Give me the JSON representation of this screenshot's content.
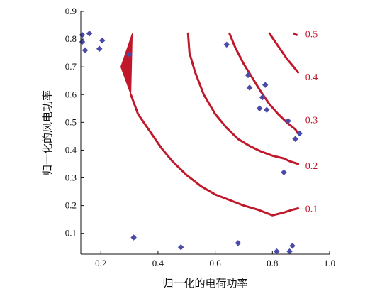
{
  "chart_data": {
    "type": "scatter",
    "xlabel": "归一化的电荷功率",
    "ylabel": "归一化的风电功率",
    "xlim": [
      0.13,
      1.0
    ],
    "ylim": [
      0.025,
      0.9
    ],
    "xticks": [
      {
        "value": 0.2,
        "label": "0.2"
      },
      {
        "value": 0.4,
        "label": "0.4"
      },
      {
        "value": 0.6,
        "label": "0.6"
      },
      {
        "value": 0.8,
        "label": "0.8"
      },
      {
        "value": 1.0,
        "label": "1.0"
      }
    ],
    "yticks": [
      {
        "value": 0.1,
        "label": "0.1"
      },
      {
        "value": 0.2,
        "label": "0.2"
      },
      {
        "value": 0.3,
        "label": "0.3"
      },
      {
        "value": 0.4,
        "label": "0.4"
      },
      {
        "value": 0.5,
        "label": "0.5"
      },
      {
        "value": 0.6,
        "label": "0.6"
      },
      {
        "value": 0.7,
        "label": "0.7"
      },
      {
        "value": 0.8,
        "label": "0.8"
      },
      {
        "value": 0.9,
        "label": "0.9"
      }
    ],
    "grid": false,
    "colors": {
      "contour": "#c0182a",
      "points": "#4a4aa8",
      "axis": "#111111"
    },
    "points": [
      {
        "x": 0.135,
        "y": 0.815
      },
      {
        "x": 0.16,
        "y": 0.82
      },
      {
        "x": 0.135,
        "y": 0.79
      },
      {
        "x": 0.145,
        "y": 0.76
      },
      {
        "x": 0.195,
        "y": 0.765
      },
      {
        "x": 0.205,
        "y": 0.795
      },
      {
        "x": 0.3,
        "y": 0.745
      },
      {
        "x": 0.315,
        "y": 0.085
      },
      {
        "x": 0.48,
        "y": 0.05
      },
      {
        "x": 0.64,
        "y": 0.78
      },
      {
        "x": 0.68,
        "y": 0.065
      },
      {
        "x": 0.715,
        "y": 0.67
      },
      {
        "x": 0.72,
        "y": 0.625
      },
      {
        "x": 0.755,
        "y": 0.55
      },
      {
        "x": 0.765,
        "y": 0.59
      },
      {
        "x": 0.775,
        "y": 0.635
      },
      {
        "x": 0.78,
        "y": 0.545
      },
      {
        "x": 0.815,
        "y": 0.035
      },
      {
        "x": 0.84,
        "y": 0.32
      },
      {
        "x": 0.855,
        "y": 0.505
      },
      {
        "x": 0.86,
        "y": 0.035
      },
      {
        "x": 0.87,
        "y": 0.055
      },
      {
        "x": 0.88,
        "y": 0.44
      },
      {
        "x": 0.895,
        "y": 0.46
      }
    ],
    "contours": [
      {
        "label": "0.1",
        "points": [
          [
            0.305,
            0.6
          ],
          [
            0.33,
            0.53
          ],
          [
            0.37,
            0.47
          ],
          [
            0.41,
            0.41
          ],
          [
            0.45,
            0.36
          ],
          [
            0.5,
            0.31
          ],
          [
            0.55,
            0.27
          ],
          [
            0.6,
            0.24
          ],
          [
            0.65,
            0.22
          ],
          [
            0.7,
            0.2
          ],
          [
            0.75,
            0.185
          ],
          [
            0.8,
            0.165
          ],
          [
            0.84,
            0.175
          ],
          [
            0.87,
            0.185
          ],
          [
            0.89,
            0.19
          ]
        ]
      },
      {
        "label": "0.2",
        "points": [
          [
            0.505,
            0.82
          ],
          [
            0.51,
            0.75
          ],
          [
            0.53,
            0.68
          ],
          [
            0.56,
            0.6
          ],
          [
            0.6,
            0.53
          ],
          [
            0.64,
            0.48
          ],
          [
            0.68,
            0.44
          ],
          [
            0.72,
            0.415
          ],
          [
            0.76,
            0.395
          ],
          [
            0.8,
            0.38
          ],
          [
            0.84,
            0.37
          ],
          [
            0.86,
            0.36
          ],
          [
            0.89,
            0.35
          ]
        ]
      },
      {
        "label": "0.3",
        "points": [
          [
            0.65,
            0.82
          ],
          [
            0.67,
            0.77
          ],
          [
            0.7,
            0.71
          ],
          [
            0.73,
            0.66
          ],
          [
            0.76,
            0.61
          ],
          [
            0.79,
            0.565
          ],
          [
            0.82,
            0.53
          ],
          [
            0.85,
            0.5
          ],
          [
            0.88,
            0.475
          ],
          [
            0.89,
            0.46
          ]
        ]
      },
      {
        "label": "0.4",
        "points": [
          [
            0.79,
            0.82
          ],
          [
            0.81,
            0.79
          ],
          [
            0.83,
            0.76
          ],
          [
            0.85,
            0.73
          ],
          [
            0.87,
            0.705
          ],
          [
            0.89,
            0.68
          ]
        ]
      },
      {
        "label": "0.5",
        "points": [
          [
            0.875,
            0.82
          ],
          [
            0.885,
            0.815
          ]
        ]
      }
    ],
    "contour_label_positions": [
      {
        "label": "0.5",
        "x": 0.915,
        "y": 0.82
      },
      {
        "label": "0.4",
        "x": 0.915,
        "y": 0.665
      },
      {
        "label": "0.3",
        "x": 0.915,
        "y": 0.51
      },
      {
        "label": "0.2",
        "x": 0.915,
        "y": 0.345
      },
      {
        "label": "0.1",
        "x": 0.915,
        "y": 0.19
      }
    ],
    "filled_region": [
      [
        0.31,
        0.82
      ],
      [
        0.305,
        0.6
      ],
      [
        0.27,
        0.7
      ],
      [
        0.31,
        0.82
      ]
    ]
  }
}
